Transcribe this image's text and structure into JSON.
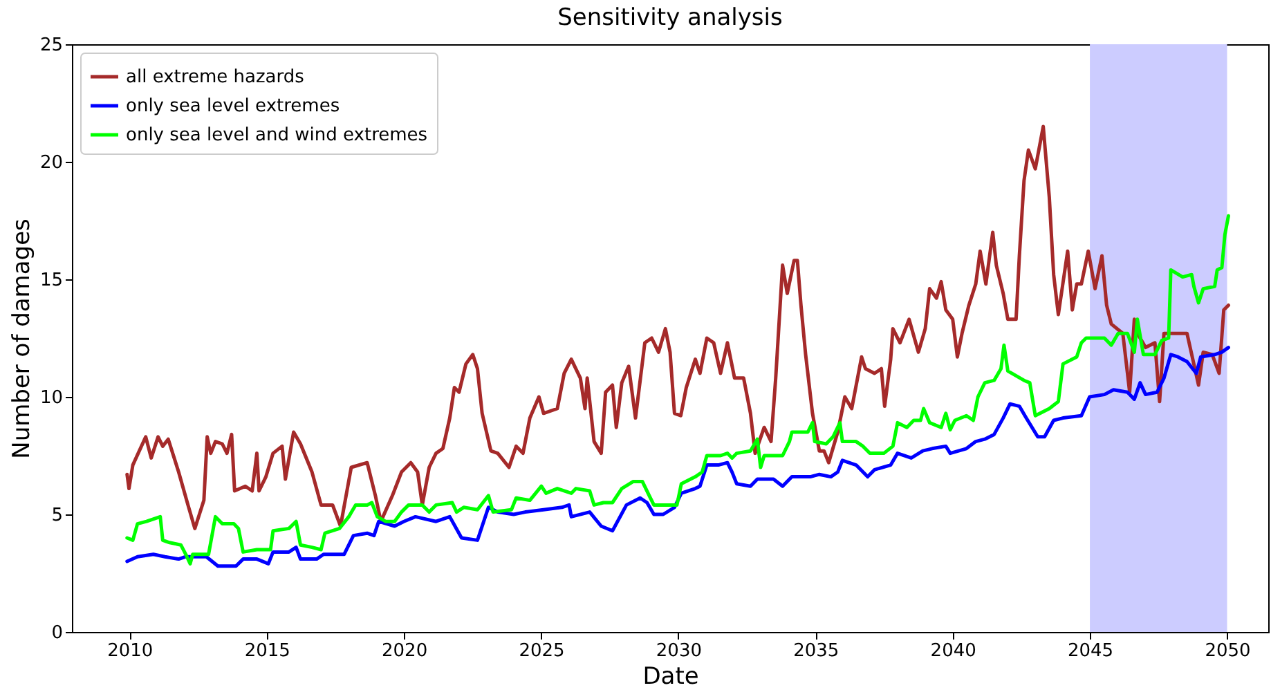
{
  "chart_data": {
    "type": "line",
    "title": "Sensitivity analysis",
    "xlabel": "Date",
    "ylabel": "Number of damages",
    "xlim": [
      2007.9,
      2051.5
    ],
    "xticks": [
      2010,
      2015,
      2020,
      2025,
      2030,
      2035,
      2040,
      2045,
      2050
    ],
    "ylim": [
      0,
      25
    ],
    "yticks": [
      0,
      5,
      10,
      15,
      20,
      25
    ],
    "grid": false,
    "legend": "top left",
    "line_style": "solid",
    "bands": [
      {
        "axis": "x",
        "from": 2045,
        "to": 2050,
        "color": "#ccccff"
      }
    ],
    "series": [
      {
        "name": "all extreme hazards",
        "color": "#a52a2a",
        "x": [
          2009.91,
          2009.98,
          2010.12,
          2010.59,
          2010.79,
          2011.04,
          2011.21,
          2011.41,
          2011.79,
          2012.13,
          2012.38,
          2012.71,
          2012.83,
          2012.96,
          2013.13,
          2013.38,
          2013.55,
          2013.72,
          2013.83,
          2014.22,
          2014.47,
          2014.64,
          2014.72,
          2014.97,
          2015.23,
          2015.56,
          2015.68,
          2015.98,
          2016.23,
          2016.65,
          2016.98,
          2017.4,
          2017.69,
          2018.08,
          2018.66,
          2018.96,
          2019.16,
          2019.58,
          2019.91,
          2020.25,
          2020.5,
          2020.67,
          2020.92,
          2021.17,
          2021.42,
          2021.67,
          2021.84,
          2022.01,
          2022.26,
          2022.51,
          2022.68,
          2022.85,
          2023.01,
          2023.17,
          2023.42,
          2023.83,
          2024.09,
          2024.34,
          2024.59,
          2024.92,
          2025.09,
          2025.59,
          2025.84,
          2026.1,
          2026.43,
          2026.6,
          2026.68,
          2026.93,
          2027.19,
          2027.35,
          2027.6,
          2027.74,
          2027.94,
          2028.19,
          2028.44,
          2028.78,
          2029.03,
          2029.28,
          2029.53,
          2029.7,
          2029.86,
          2030.09,
          2030.29,
          2030.62,
          2030.79,
          2031.04,
          2031.29,
          2031.54,
          2031.79,
          2032.05,
          2032.38,
          2032.63,
          2032.8,
          2033.13,
          2033.38,
          2033.55,
          2033.8,
          2033.97,
          2034.22,
          2034.34,
          2034.47,
          2034.64,
          2034.89,
          2035.14,
          2035.31,
          2035.48,
          2035.81,
          2036.07,
          2036.32,
          2036.68,
          2036.82,
          2037.15,
          2037.4,
          2037.52,
          2037.74,
          2037.82,
          2038.08,
          2038.41,
          2038.75,
          2039.0,
          2039.16,
          2039.41,
          2039.58,
          2039.75,
          2040.0,
          2040.17,
          2040.34,
          2040.59,
          2040.84,
          2041.0,
          2041.21,
          2041.46,
          2041.59,
          2041.84,
          2042.01,
          2042.31,
          2042.43,
          2042.6,
          2042.76,
          2043.01,
          2043.3,
          2043.52,
          2043.68,
          2043.85,
          2044.19,
          2044.36,
          2044.52,
          2044.69,
          2044.94,
          2045.19,
          2045.44,
          2045.61,
          2045.78,
          2046.2,
          2046.45,
          2046.62,
          2046.78,
          2047.03,
          2047.37,
          2047.54,
          2047.7,
          2048.21,
          2048.54,
          2048.96,
          2049.13,
          2049.46,
          2049.71,
          2049.88,
          2050.05
        ],
        "values": [
          6.7,
          6.1,
          7.1,
          8.3,
          7.4,
          8.3,
          7.9,
          8.2,
          6.8,
          5.4,
          4.4,
          5.6,
          8.3,
          7.6,
          8.1,
          8.0,
          7.6,
          8.4,
          6.0,
          6.2,
          6.0,
          7.6,
          6.0,
          6.6,
          7.6,
          7.9,
          6.5,
          8.5,
          8.0,
          6.8,
          5.4,
          5.4,
          4.5,
          7.0,
          7.2,
          5.8,
          4.7,
          5.8,
          6.8,
          7.2,
          6.8,
          5.4,
          7.0,
          7.6,
          7.8,
          9.1,
          10.4,
          10.2,
          11.4,
          11.8,
          11.2,
          9.3,
          8.5,
          7.7,
          7.6,
          7.0,
          7.9,
          7.6,
          9.1,
          10.0,
          9.3,
          9.5,
          11.0,
          11.6,
          10.8,
          9.5,
          10.8,
          8.1,
          7.6,
          10.2,
          10.5,
          8.7,
          10.6,
          11.3,
          9.1,
          12.3,
          12.5,
          11.9,
          12.9,
          11.9,
          9.3,
          9.2,
          10.4,
          11.6,
          11.0,
          12.5,
          12.3,
          11.0,
          12.3,
          10.8,
          10.8,
          9.3,
          7.6,
          8.7,
          8.1,
          10.8,
          15.6,
          14.4,
          15.8,
          15.8,
          13.9,
          11.8,
          9.3,
          7.7,
          7.7,
          7.2,
          8.5,
          10.0,
          9.5,
          11.7,
          11.2,
          11.0,
          11.2,
          9.6,
          11.6,
          12.9,
          12.3,
          13.3,
          11.9,
          12.9,
          14.6,
          14.2,
          14.9,
          13.7,
          13.3,
          11.7,
          12.7,
          13.9,
          14.8,
          16.2,
          14.8,
          17.0,
          15.6,
          14.4,
          13.3,
          13.3,
          16.0,
          19.2,
          20.5,
          19.7,
          21.5,
          18.5,
          15.2,
          13.5,
          16.2,
          13.7,
          14.8,
          14.8,
          16.2,
          14.6,
          16.0,
          13.9,
          13.1,
          12.7,
          10.2,
          13.3,
          12.6,
          12.1,
          12.3,
          9.8,
          12.7,
          12.7,
          12.7,
          10.5,
          11.9,
          11.8,
          11.0,
          13.7,
          13.9
        ]
      },
      {
        "name": "only sea level extremes",
        "color": "#0000ff",
        "x": [
          2009.91,
          2010.29,
          2010.87,
          2011.29,
          2011.79,
          2012.05,
          2012.8,
          2013.22,
          2013.88,
          2014.14,
          2014.64,
          2015.06,
          2015.23,
          2015.81,
          2016.07,
          2016.23,
          2016.82,
          2017.07,
          2017.82,
          2018.16,
          2018.66,
          2018.91,
          2019.08,
          2019.66,
          2020.0,
          2020.42,
          2021.17,
          2021.67,
          2022.1,
          2022.68,
          2023.08,
          2023.42,
          2024.0,
          2024.42,
          2025.09,
          2025.76,
          2026.02,
          2026.1,
          2026.77,
          2027.19,
          2027.6,
          2028.11,
          2028.61,
          2028.86,
          2029.11,
          2029.45,
          2029.86,
          2030.11,
          2030.62,
          2030.79,
          2031.04,
          2031.46,
          2031.79,
          2031.96,
          2032.13,
          2032.63,
          2032.88,
          2033.47,
          2033.8,
          2034.14,
          2034.81,
          2035.14,
          2035.56,
          2035.81,
          2035.98,
          2036.48,
          2036.9,
          2037.15,
          2037.74,
          2037.99,
          2038.49,
          2038.91,
          2039.25,
          2039.75,
          2039.91,
          2040.5,
          2040.84,
          2041.17,
          2041.51,
          2041.84,
          2042.09,
          2042.43,
          2042.68,
          2043.1,
          2043.35,
          2043.68,
          2044.02,
          2044.69,
          2044.99,
          2045.53,
          2045.86,
          2046.37,
          2046.62,
          2046.83,
          2047.03,
          2047.45,
          2047.7,
          2047.95,
          2048.21,
          2048.54,
          2048.88,
          2049.04,
          2049.55,
          2049.81,
          2050.05
        ],
        "values": [
          3.0,
          3.2,
          3.3,
          3.2,
          3.1,
          3.2,
          3.2,
          2.8,
          2.8,
          3.1,
          3.1,
          2.9,
          3.4,
          3.4,
          3.6,
          3.1,
          3.1,
          3.3,
          3.3,
          4.1,
          4.2,
          4.1,
          4.7,
          4.5,
          4.7,
          4.9,
          4.7,
          4.9,
          4.0,
          3.9,
          5.3,
          5.1,
          5.0,
          5.1,
          5.2,
          5.3,
          5.4,
          4.9,
          5.1,
          4.5,
          4.3,
          5.4,
          5.7,
          5.5,
          5.0,
          5.0,
          5.3,
          5.9,
          6.1,
          6.2,
          7.1,
          7.1,
          7.2,
          6.8,
          6.3,
          6.2,
          6.5,
          6.5,
          6.2,
          6.6,
          6.6,
          6.7,
          6.6,
          6.8,
          7.3,
          7.1,
          6.6,
          6.9,
          7.1,
          7.6,
          7.4,
          7.7,
          7.8,
          7.9,
          7.6,
          7.8,
          8.1,
          8.2,
          8.4,
          9.1,
          9.7,
          9.6,
          9.1,
          8.3,
          8.3,
          9.0,
          9.1,
          9.2,
          10.0,
          10.1,
          10.3,
          10.2,
          9.9,
          10.6,
          10.1,
          10.2,
          10.8,
          11.8,
          11.7,
          11.5,
          11.0,
          11.7,
          11.8,
          11.9,
          12.1
        ]
      },
      {
        "name": "only sea level and wind extremes",
        "color": "#00ff00",
        "x": [
          2009.91,
          2010.12,
          2010.29,
          2010.62,
          2011.12,
          2011.21,
          2011.46,
          2011.87,
          2012.05,
          2012.21,
          2012.3,
          2012.88,
          2013.13,
          2013.38,
          2013.8,
          2013.97,
          2014.14,
          2014.64,
          2015.14,
          2015.23,
          2015.81,
          2016.07,
          2016.23,
          2016.65,
          2016.98,
          2017.12,
          2017.65,
          2017.99,
          2018.24,
          2018.66,
          2018.83,
          2019.03,
          2019.33,
          2019.66,
          2019.91,
          2020.17,
          2020.67,
          2020.92,
          2021.17,
          2021.76,
          2021.92,
          2022.18,
          2022.68,
          2023.08,
          2023.25,
          2023.92,
          2024.09,
          2024.59,
          2025.01,
          2025.18,
          2025.59,
          2026.1,
          2026.27,
          2026.77,
          2026.93,
          2027.27,
          2027.6,
          2027.94,
          2028.36,
          2028.69,
          2028.94,
          2029.11,
          2029.61,
          2029.95,
          2030.11,
          2030.62,
          2030.87,
          2031.04,
          2031.54,
          2031.79,
          2031.96,
          2032.13,
          2032.63,
          2032.88,
          2033.0,
          2033.13,
          2033.8,
          2034.05,
          2034.14,
          2034.72,
          2034.89,
          2034.97,
          2035.39,
          2035.64,
          2035.89,
          2035.98,
          2036.48,
          2036.73,
          2036.98,
          2037.49,
          2037.82,
          2037.99,
          2038.33,
          2038.58,
          2038.83,
          2038.94,
          2039.16,
          2039.58,
          2039.75,
          2039.91,
          2040.08,
          2040.5,
          2040.75,
          2040.92,
          2041.17,
          2041.51,
          2041.76,
          2041.87,
          2042.01,
          2042.6,
          2042.81,
          2043.01,
          2043.52,
          2043.85,
          2044.02,
          2044.52,
          2044.69,
          2044.86,
          2045.53,
          2045.78,
          2046.03,
          2046.37,
          2046.62,
          2046.73,
          2046.95,
          2047.37,
          2047.62,
          2047.87,
          2047.95,
          2048.38,
          2048.71,
          2048.79,
          2048.96,
          2049.13,
          2049.55,
          2049.64,
          2049.81,
          2049.92,
          2050.05
        ],
        "values": [
          4.0,
          3.9,
          4.6,
          4.7,
          4.9,
          3.9,
          3.8,
          3.7,
          3.3,
          2.9,
          3.3,
          3.3,
          4.9,
          4.6,
          4.6,
          4.4,
          3.4,
          3.5,
          3.5,
          4.3,
          4.4,
          4.7,
          3.7,
          3.6,
          3.5,
          4.2,
          4.4,
          4.9,
          5.4,
          5.4,
          5.5,
          4.9,
          4.7,
          4.7,
          5.1,
          5.4,
          5.4,
          5.1,
          5.4,
          5.5,
          5.1,
          5.3,
          5.2,
          5.8,
          5.1,
          5.2,
          5.7,
          5.6,
          6.2,
          5.9,
          6.1,
          5.9,
          6.1,
          6.0,
          5.4,
          5.5,
          5.5,
          6.1,
          6.4,
          6.4,
          5.8,
          5.4,
          5.4,
          5.4,
          6.3,
          6.6,
          6.8,
          7.5,
          7.5,
          7.6,
          7.4,
          7.6,
          7.7,
          8.2,
          7.0,
          7.5,
          7.5,
          8.1,
          8.5,
          8.5,
          8.9,
          8.1,
          8.0,
          8.3,
          8.9,
          8.1,
          8.1,
          7.9,
          7.6,
          7.6,
          7.9,
          8.9,
          8.7,
          9.0,
          9.0,
          9.5,
          8.9,
          8.7,
          9.3,
          8.6,
          9.0,
          9.2,
          9.0,
          10.0,
          10.6,
          10.7,
          11.2,
          12.2,
          11.1,
          10.7,
          10.6,
          9.2,
          9.5,
          9.8,
          11.4,
          11.7,
          12.3,
          12.5,
          12.5,
          12.2,
          12.7,
          12.7,
          11.9,
          13.3,
          11.8,
          11.8,
          12.4,
          12.5,
          15.4,
          15.1,
          15.2,
          14.7,
          14.0,
          14.6,
          14.7,
          15.4,
          15.5,
          16.9,
          17.7
        ]
      }
    ]
  }
}
